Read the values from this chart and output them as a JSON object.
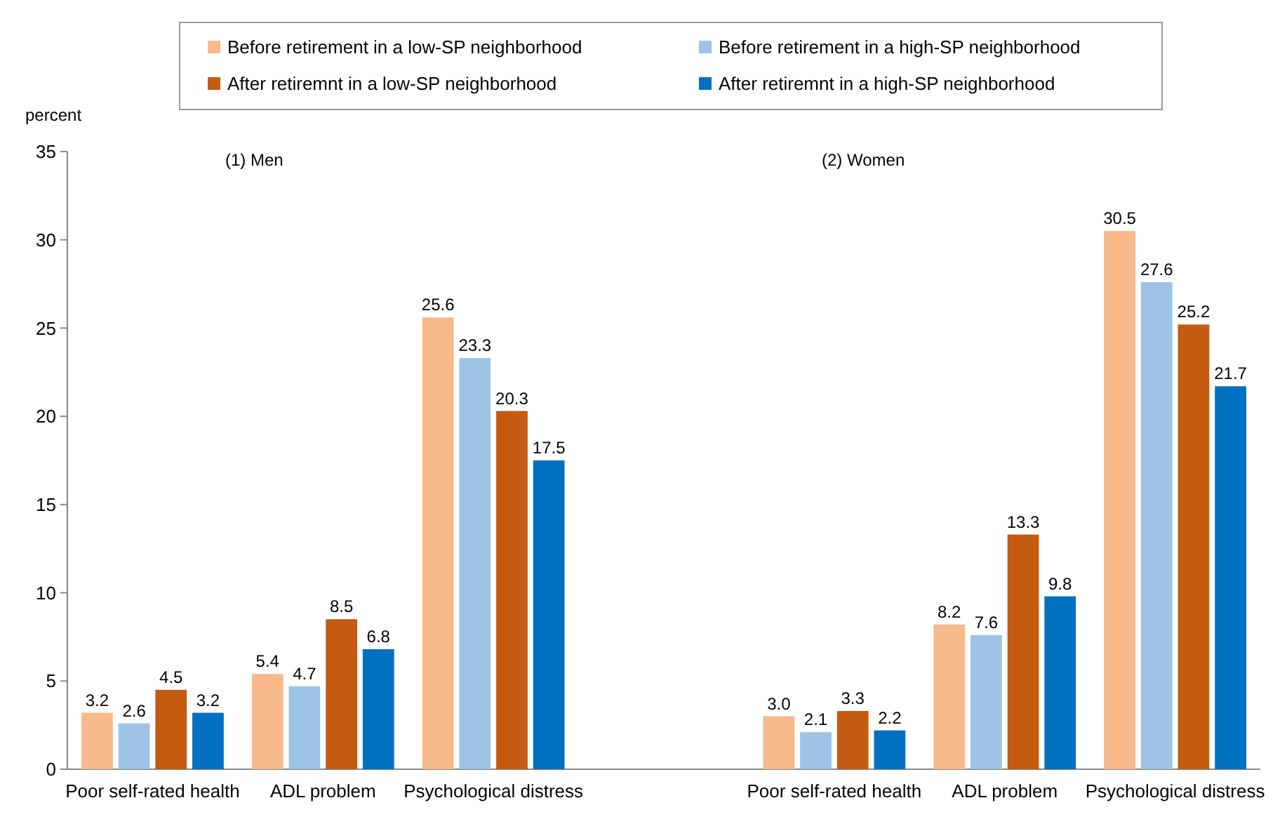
{
  "chart_data": {
    "type": "bar",
    "ylabel": "percent",
    "categories": [
      "Poor self-rated health",
      "ADL problem",
      "Psychological distress",
      null,
      "Poor self-rated health",
      "ADL problem",
      "Psychological distress"
    ],
    "series": [
      {
        "name": "Before retirement in a low-SP neighborhood",
        "color": "#f8b98b",
        "values": [
          3.2,
          5.4,
          25.6,
          null,
          3.0,
          8.2,
          30.5
        ],
        "value_labels": [
          "3.2",
          "5.4",
          "25.6",
          null,
          "3.0",
          "8.2",
          "30.5"
        ]
      },
      {
        "name": "Before retirement in a high-SP neighborhood",
        "color": "#9dc3e6",
        "values": [
          2.6,
          4.7,
          23.3,
          null,
          2.1,
          7.6,
          27.6
        ],
        "value_labels": [
          "2.6",
          "4.7",
          "23.3",
          null,
          "2.1",
          "7.6",
          "27.6"
        ]
      },
      {
        "name": "After retiremnt in a low-SP neighborhood",
        "color": "#c55a11",
        "values": [
          4.5,
          8.5,
          20.3,
          null,
          3.3,
          13.3,
          25.2
        ],
        "value_labels": [
          "4.5",
          "8.5",
          "20.3",
          null,
          "3.3",
          "13.3",
          "25.2"
        ]
      },
      {
        "name": "After retiremnt in a high-SP neighborhood",
        "color": "#0070c0",
        "values": [
          3.2,
          6.8,
          17.5,
          null,
          2.2,
          9.8,
          21.7
        ],
        "value_labels": [
          "3.2",
          "6.8",
          "17.5",
          null,
          "2.2",
          "9.8",
          "21.7"
        ]
      }
    ],
    "ylim": [
      0,
      35
    ],
    "yticks": [
      0,
      5,
      10,
      15,
      20,
      25,
      30,
      35
    ],
    "grid": false,
    "legend": "top",
    "annotations": [
      "(1) Men",
      "(2) Women"
    ]
  }
}
